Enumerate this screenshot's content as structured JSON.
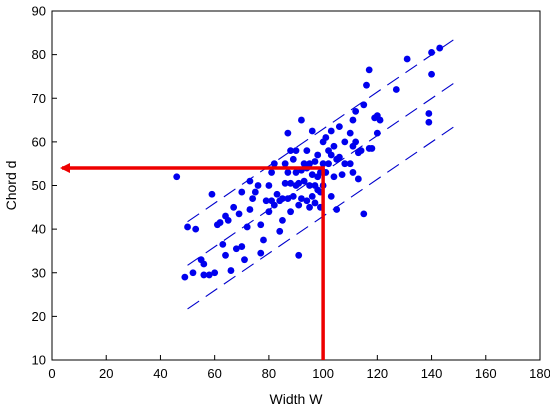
{
  "chart_data": {
    "type": "scatter",
    "xlabel": "Width W",
    "ylabel": "Chord d",
    "xlim": [
      0,
      180
    ],
    "ylim": [
      10,
      90
    ],
    "xticks": [
      0,
      20,
      40,
      60,
      80,
      100,
      120,
      140,
      160,
      180
    ],
    "yticks": [
      10,
      20,
      30,
      40,
      50,
      60,
      70,
      80,
      90
    ],
    "grid": false,
    "colors": {
      "points": "#0000ee",
      "lines": "#0000cc",
      "arrow": "#ee0000"
    },
    "points": [
      [
        46,
        52
      ],
      [
        49,
        29
      ],
      [
        50,
        40.5
      ],
      [
        52,
        30
      ],
      [
        53,
        40
      ],
      [
        55,
        33
      ],
      [
        56,
        29.5
      ],
      [
        56,
        32
      ],
      [
        58,
        29.5
      ],
      [
        59,
        48
      ],
      [
        60,
        30
      ],
      [
        61,
        41
      ],
      [
        62,
        41.5
      ],
      [
        63,
        36.5
      ],
      [
        64,
        34
      ],
      [
        64,
        43
      ],
      [
        65,
        42
      ],
      [
        66,
        30.5
      ],
      [
        67,
        45
      ],
      [
        68,
        35.5
      ],
      [
        69,
        43.5
      ],
      [
        70,
        48.5
      ],
      [
        70,
        36
      ],
      [
        71,
        33
      ],
      [
        72,
        40.5
      ],
      [
        73,
        44.5
      ],
      [
        73,
        51
      ],
      [
        74,
        47
      ],
      [
        75,
        48.5
      ],
      [
        76,
        50
      ],
      [
        77,
        34.5
      ],
      [
        77,
        41
      ],
      [
        78,
        37.5
      ],
      [
        79,
        46.5
      ],
      [
        80,
        44
      ],
      [
        80,
        50
      ],
      [
        81,
        46.5
      ],
      [
        81,
        53
      ],
      [
        82,
        45.5
      ],
      [
        82,
        55
      ],
      [
        83,
        48
      ],
      [
        84,
        39.5
      ],
      [
        84,
        46.5
      ],
      [
        85,
        42
      ],
      [
        85,
        47
      ],
      [
        86,
        50.5
      ],
      [
        86,
        55
      ],
      [
        87,
        47
      ],
      [
        87,
        53
      ],
      [
        87,
        62
      ],
      [
        88,
        50.5
      ],
      [
        88,
        44
      ],
      [
        88,
        58
      ],
      [
        89,
        47.5
      ],
      [
        89,
        56
      ],
      [
        90,
        50
      ],
      [
        90,
        53
      ],
      [
        90,
        58
      ],
      [
        91,
        34
      ],
      [
        91,
        45.5
      ],
      [
        91,
        50.5
      ],
      [
        92,
        47
      ],
      [
        92,
        53.5
      ],
      [
        92,
        65
      ],
      [
        93,
        55
      ],
      [
        93,
        51
      ],
      [
        94,
        46.5
      ],
      [
        94,
        54
      ],
      [
        94,
        58
      ],
      [
        95,
        45
      ],
      [
        95,
        50
      ],
      [
        95,
        55
      ],
      [
        96,
        47.5
      ],
      [
        96,
        52.5
      ],
      [
        96,
        62.5
      ],
      [
        97,
        46
      ],
      [
        97,
        50
      ],
      [
        97,
        55.5
      ],
      [
        98,
        49
      ],
      [
        98,
        52
      ],
      [
        98,
        57
      ],
      [
        99,
        45
      ],
      [
        99,
        48.5
      ],
      [
        99,
        53
      ],
      [
        100,
        50
      ],
      [
        100,
        55
      ],
      [
        100,
        60
      ],
      [
        101,
        53
      ],
      [
        101,
        61
      ],
      [
        102,
        55
      ],
      [
        102,
        58
      ],
      [
        103,
        47.5
      ],
      [
        103,
        57
      ],
      [
        103,
        62.5
      ],
      [
        104,
        52
      ],
      [
        104,
        59
      ],
      [
        105,
        44.5
      ],
      [
        105,
        56
      ],
      [
        106,
        56.5
      ],
      [
        106,
        63.5
      ],
      [
        107,
        52.5
      ],
      [
        108,
        55
      ],
      [
        108,
        60
      ],
      [
        110,
        55
      ],
      [
        110,
        62
      ],
      [
        111,
        53
      ],
      [
        111,
        59
      ],
      [
        111,
        65
      ],
      [
        112,
        60
      ],
      [
        112,
        67
      ],
      [
        113,
        57.5
      ],
      [
        113,
        51.5
      ],
      [
        114,
        58
      ],
      [
        115,
        43.5
      ],
      [
        115,
        68.5
      ],
      [
        116,
        73
      ],
      [
        117,
        58.5
      ],
      [
        117,
        76.5
      ],
      [
        118,
        58.5
      ],
      [
        119,
        65.5
      ],
      [
        120,
        66
      ],
      [
        120,
        62
      ],
      [
        121,
        65
      ],
      [
        127,
        72
      ],
      [
        131,
        79
      ],
      [
        139,
        64.5
      ],
      [
        139,
        66.5
      ],
      [
        140,
        75.5
      ],
      [
        140,
        80.5
      ],
      [
        143,
        81.5
      ]
    ],
    "lines": [
      {
        "name": "",
        "x": [
          50,
          150
        ],
        "y": [
          41.7,
          84.2
        ],
        "dash": "long"
      },
      {
        "name": "",
        "x": [
          50,
          150
        ],
        "y": [
          31.7,
          74.2
        ],
        "dash": "long"
      },
      {
        "name": "",
        "x": [
          50,
          150
        ],
        "y": [
          21.7,
          64.2
        ],
        "dash": "long"
      }
    ],
    "arrow": {
      "from": [
        100,
        10
      ],
      "corner": [
        100,
        54
      ],
      "to": [
        0,
        54
      ]
    }
  }
}
